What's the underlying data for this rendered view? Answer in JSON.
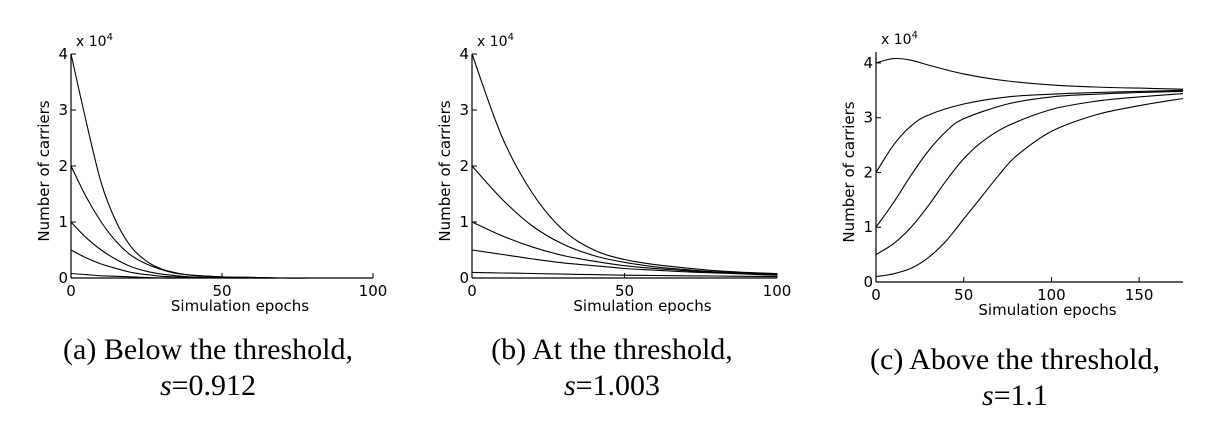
{
  "chart_data": [
    {
      "type": "line",
      "caption_line1": "(a) Below the threshold,",
      "caption_var": "s",
      "caption_value": "=0.912",
      "xlabel": "Simulation epochs",
      "ylabel": "Number of carriers",
      "y_multiplier": "x 10",
      "y_multiplier_exp": "4",
      "xlim": [
        0,
        100
      ],
      "ylim": [
        0,
        4
      ],
      "xticks": [
        0,
        50,
        100
      ],
      "yticks": [
        0,
        1,
        2,
        3,
        4
      ],
      "series": [
        {
          "x": [
            0,
            5,
            10,
            15,
            20,
            25,
            30,
            35,
            40,
            50,
            60,
            70,
            80,
            100
          ],
          "y": [
            4.0,
            2.8,
            1.7,
            1.0,
            0.55,
            0.3,
            0.16,
            0.09,
            0.05,
            0.02,
            0.01,
            0.0,
            0.0,
            0.0
          ]
        },
        {
          "x": [
            0,
            5,
            10,
            15,
            20,
            25,
            30,
            35,
            40,
            50,
            60,
            70,
            80,
            100
          ],
          "y": [
            2.0,
            1.45,
            1.0,
            0.65,
            0.4,
            0.25,
            0.15,
            0.08,
            0.05,
            0.02,
            0.01,
            0.0,
            0.0,
            0.0
          ]
        },
        {
          "x": [
            0,
            5,
            10,
            15,
            20,
            25,
            30,
            35,
            40,
            50,
            60,
            70,
            80,
            100
          ],
          "y": [
            1.0,
            0.72,
            0.5,
            0.33,
            0.2,
            0.12,
            0.07,
            0.04,
            0.02,
            0.01,
            0.0,
            0.0,
            0.0,
            0.0
          ]
        },
        {
          "x": [
            0,
            5,
            10,
            15,
            20,
            25,
            30,
            35,
            40,
            50,
            60,
            70,
            80,
            100
          ],
          "y": [
            0.5,
            0.36,
            0.25,
            0.17,
            0.1,
            0.06,
            0.03,
            0.02,
            0.01,
            0.0,
            0.0,
            0.0,
            0.0,
            0.0
          ]
        },
        {
          "x": [
            0,
            5,
            10,
            15,
            20,
            25,
            30,
            35,
            40,
            50,
            60,
            70,
            80,
            100
          ],
          "y": [
            0.08,
            0.06,
            0.04,
            0.03,
            0.02,
            0.01,
            0.0,
            0.0,
            0.0,
            0.0,
            0.0,
            0.0,
            0.0,
            0.0
          ]
        }
      ]
    },
    {
      "type": "line",
      "caption_line1": "(b) At the threshold,",
      "caption_var": "s",
      "caption_value": "=1.003",
      "xlabel": "Simulation epochs",
      "ylabel": "Number of carriers",
      "y_multiplier": "x 10",
      "y_multiplier_exp": "4",
      "xlim": [
        0,
        100
      ],
      "ylim": [
        0,
        4
      ],
      "xticks": [
        0,
        50,
        100
      ],
      "yticks": [
        0,
        1,
        2,
        3,
        4
      ],
      "series": [
        {
          "x": [
            0,
            10,
            20,
            30,
            40,
            50,
            60,
            70,
            80,
            90,
            100
          ],
          "y": [
            4.0,
            2.5,
            1.5,
            0.85,
            0.5,
            0.33,
            0.24,
            0.18,
            0.13,
            0.1,
            0.08
          ]
        },
        {
          "x": [
            0,
            10,
            20,
            30,
            40,
            50,
            60,
            70,
            80,
            90,
            100
          ],
          "y": [
            2.0,
            1.4,
            0.92,
            0.6,
            0.4,
            0.28,
            0.2,
            0.15,
            0.11,
            0.09,
            0.07
          ]
        },
        {
          "x": [
            0,
            10,
            20,
            30,
            40,
            50,
            60,
            70,
            80,
            90,
            100
          ],
          "y": [
            1.0,
            0.75,
            0.55,
            0.4,
            0.3,
            0.22,
            0.17,
            0.13,
            0.1,
            0.08,
            0.06
          ]
        },
        {
          "x": [
            0,
            10,
            20,
            30,
            40,
            50,
            60,
            70,
            80,
            90,
            100
          ],
          "y": [
            0.5,
            0.42,
            0.34,
            0.27,
            0.22,
            0.17,
            0.14,
            0.11,
            0.09,
            0.07,
            0.05
          ]
        },
        {
          "x": [
            0,
            10,
            20,
            30,
            40,
            50,
            60,
            70,
            80,
            90,
            100
          ],
          "y": [
            0.1,
            0.09,
            0.08,
            0.07,
            0.06,
            0.05,
            0.045,
            0.04,
            0.035,
            0.03,
            0.025
          ]
        }
      ]
    },
    {
      "type": "line",
      "caption_line1": "(c) Above the threshold,",
      "caption_var": "s",
      "caption_value": "=1.1",
      "xlabel": "Simulation epochs",
      "ylabel": "Number of carriers",
      "y_multiplier": "x 10",
      "y_multiplier_exp": "4",
      "xlim": [
        0,
        175
      ],
      "ylim": [
        0,
        4.2
      ],
      "xticks": [
        0,
        50,
        100,
        150
      ],
      "yticks": [
        0,
        1,
        2,
        3,
        4
      ],
      "series": [
        {
          "x": [
            0,
            10,
            20,
            30,
            50,
            75,
            100,
            125,
            150,
            175
          ],
          "y": [
            4.0,
            4.08,
            4.05,
            3.96,
            3.8,
            3.67,
            3.6,
            3.56,
            3.54,
            3.52
          ]
        },
        {
          "x": [
            0,
            10,
            20,
            30,
            50,
            75,
            100,
            125,
            150,
            175
          ],
          "y": [
            2.0,
            2.5,
            2.85,
            3.05,
            3.25,
            3.38,
            3.43,
            3.46,
            3.48,
            3.5
          ]
        },
        {
          "x": [
            0,
            10,
            20,
            30,
            40,
            50,
            75,
            100,
            125,
            150,
            175
          ],
          "y": [
            1.0,
            1.45,
            1.95,
            2.4,
            2.75,
            2.98,
            3.25,
            3.38,
            3.43,
            3.46,
            3.48
          ]
        },
        {
          "x": [
            0,
            10,
            20,
            30,
            40,
            50,
            60,
            75,
            100,
            125,
            150,
            175
          ],
          "y": [
            0.5,
            0.7,
            1.0,
            1.4,
            1.85,
            2.25,
            2.55,
            2.85,
            3.15,
            3.3,
            3.38,
            3.44
          ]
        },
        {
          "x": [
            0,
            10,
            20,
            30,
            40,
            50,
            60,
            70,
            80,
            100,
            125,
            150,
            175
          ],
          "y": [
            0.1,
            0.15,
            0.25,
            0.45,
            0.75,
            1.15,
            1.55,
            1.95,
            2.3,
            2.75,
            3.05,
            3.22,
            3.35
          ]
        }
      ]
    }
  ]
}
